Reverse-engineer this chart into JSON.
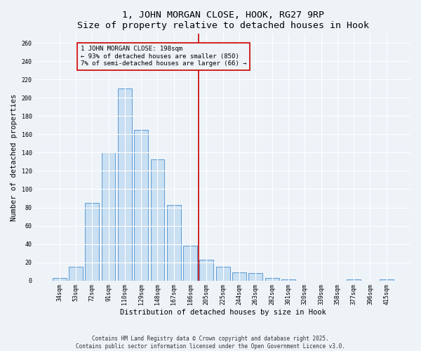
{
  "title1": "1, JOHN MORGAN CLOSE, HOOK, RG27 9RP",
  "title2": "Size of property relative to detached houses in Hook",
  "xlabel": "Distribution of detached houses by size in Hook",
  "ylabel": "Number of detached properties",
  "bar_labels": [
    "34sqm",
    "53sqm",
    "72sqm",
    "91sqm",
    "110sqm",
    "129sqm",
    "148sqm",
    "167sqm",
    "186sqm",
    "205sqm",
    "225sqm",
    "244sqm",
    "263sqm",
    "282sqm",
    "301sqm",
    "320sqm",
    "339sqm",
    "358sqm",
    "377sqm",
    "396sqm",
    "415sqm"
  ],
  "bar_values": [
    3,
    15,
    85,
    140,
    210,
    165,
    133,
    83,
    38,
    23,
    15,
    9,
    8,
    3,
    1,
    0,
    0,
    0,
    1,
    0,
    1
  ],
  "bar_color": "#c9dff2",
  "bar_edge_color": "#5b9bd5",
  "vline_color": "#cc0000",
  "annotation_text": "1 JOHN MORGAN CLOSE: 198sqm\n← 93% of detached houses are smaller (850)\n7% of semi-detached houses are larger (66) →",
  "annotation_box_color": "#cc0000",
  "ylim": [
    0,
    270
  ],
  "yticks": [
    0,
    20,
    40,
    60,
    80,
    100,
    120,
    140,
    160,
    180,
    200,
    220,
    240,
    260
  ],
  "footer": "Contains HM Land Registry data © Crown copyright and database right 2025.\nContains public sector information licensed under the Open Government Licence v3.0.",
  "bg_color": "#eef3f8",
  "grid_color": "#ffffff",
  "title_fontsize": 9.5,
  "subtitle_fontsize": 8.5,
  "annotation_fontsize": 6.5,
  "axis_label_fontsize": 7.5,
  "tick_fontsize": 6,
  "footer_fontsize": 5.5
}
